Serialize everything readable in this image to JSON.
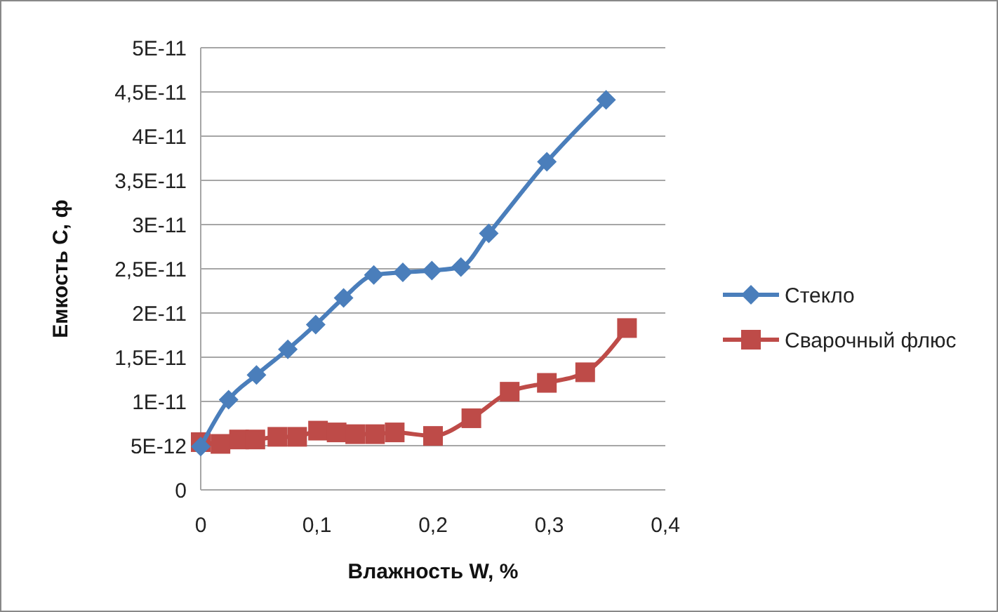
{
  "chart_data": {
    "type": "line",
    "xlabel": "Влажность W, %",
    "ylabel": "Емкость С, ф",
    "xlim": [
      0,
      0.4
    ],
    "xticks": [
      0,
      {
        "value": 0.1,
        "label": "0,1"
      },
      {
        "value": 0.2,
        "label": "0,2"
      },
      {
        "value": 0.3,
        "label": "0,3"
      },
      {
        "value": 0.4,
        "label": "0,4"
      }
    ],
    "ylim": [
      0,
      5e-11
    ],
    "yticks": [
      0,
      {
        "value": 5e-12,
        "label": "5E-12"
      },
      {
        "value": 1e-11,
        "label": "1E-11"
      },
      {
        "value": 1.5e-11,
        "label": "1,5E-11"
      },
      {
        "value": 2e-11,
        "label": "2E-11"
      },
      {
        "value": 2.5e-11,
        "label": "2,5E-11"
      },
      {
        "value": 3e-11,
        "label": "3E-11"
      },
      {
        "value": 3.5e-11,
        "label": "3,5E-11"
      },
      {
        "value": 4e-11,
        "label": "4E-11"
      },
      {
        "value": 4.5e-11,
        "label": "4,5E-11"
      },
      {
        "value": 5e-11,
        "label": "5E-11"
      }
    ],
    "grid": "y",
    "legend": "right",
    "line_style": "solid",
    "series": [
      {
        "name": "Стекло",
        "color": "#4a7ebb",
        "marker": "diamond",
        "x": [
          0,
          0.024,
          0.048,
          0.075,
          0.099,
          0.123,
          0.149,
          0.174,
          0.199,
          0.224,
          0.248,
          0.298,
          0.349
        ],
        "values": [
          4.9e-12,
          1.02e-11,
          1.3e-11,
          1.59e-11,
          1.87e-11,
          2.17e-11,
          2.43e-11,
          2.46e-11,
          2.48e-11,
          2.52e-11,
          2.9e-11,
          3.71e-11,
          4.41e-11
        ]
      },
      {
        "name": "Сварочный флюс",
        "color": "#be4b48",
        "marker": "square",
        "x": [
          0,
          0.017,
          0.033,
          0.047,
          0.066,
          0.083,
          0.101,
          0.117,
          0.133,
          0.15,
          0.167,
          0.2,
          0.233,
          0.266,
          0.298,
          0.331,
          0.367
        ],
        "values": [
          5.4e-12,
          5.2e-12,
          5.7e-12,
          5.7e-12,
          6e-12,
          6e-12,
          6.7e-12,
          6.5e-12,
          6.3e-12,
          6.3e-12,
          6.5e-12,
          6.1e-12,
          8.1e-12,
          1.11e-11,
          1.21e-11,
          1.33e-11,
          1.83e-11
        ]
      }
    ]
  }
}
